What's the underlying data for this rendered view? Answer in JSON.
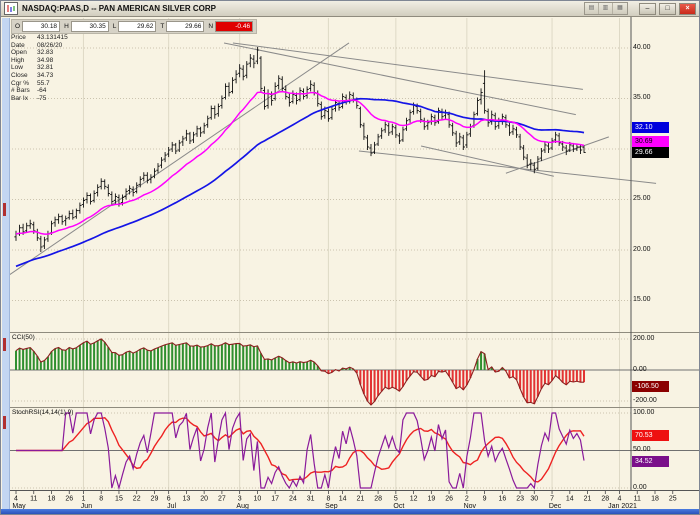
{
  "window": {
    "title": "NASDAQ:PAAS,D -- PAN AMERICAN SILVER CORP",
    "mini_toolbar": [
      "▤",
      "▥",
      "▦"
    ],
    "controls": {
      "minimize": "–",
      "restore": "□",
      "close": "×"
    }
  },
  "quote_strip": {
    "cells": [
      {
        "label": "O",
        "value": "30.18"
      },
      {
        "label": "H",
        "value": "30.35"
      },
      {
        "label": "L",
        "value": "29.62"
      },
      {
        "label": "T",
        "value": "29.66"
      },
      {
        "label": "N",
        "value": "-0.46",
        "negative": true
      }
    ]
  },
  "info_panel": {
    "rows": [
      {
        "label": "Price",
        "value": "43.131415"
      },
      {
        "label": "Date",
        "value": "08/26/20"
      },
      {
        "label": "Open",
        "value": "32.83"
      },
      {
        "label": "High",
        "value": "34.98"
      },
      {
        "label": "Low",
        "value": "32.81"
      },
      {
        "label": "Close",
        "value": "34.73"
      },
      {
        "label": "Cgr %",
        "value": "55.7"
      },
      {
        "label": "# Bars",
        "value": "-64"
      },
      {
        "label": "Bar Ix",
        "value": "-75"
      }
    ]
  },
  "colors": {
    "chart_bg": "#f8f3e3",
    "bar": "#111111",
    "sma": "#1414e6",
    "ema": "#ff00ff",
    "trendline": "#8a8a8a",
    "grid_dotted": "#bcb49e",
    "grid_month": "#ded9c6",
    "frame": "#8f8b7e",
    "axis": "#555555",
    "cci_pos": "#2f8f2f",
    "cci_neg": "#e23333",
    "cci_outline": "#8b1f1f",
    "stoch_k": "#8a1a9b",
    "stoch_d": "#ee2222",
    "tag_sma_bg": "#0000dd",
    "tag_ema_bg": "#ff00ff",
    "tag_last_bg": "#000000",
    "tag_cci_bg": "#8b0000",
    "tag_k_bg": "#7a0f8a",
    "tag_d_bg": "#ee1111",
    "quote_neg_bg": "#e00000"
  },
  "chart_data": {
    "type": "multi-panel-financial",
    "symbol": "NASDAQ:PAAS",
    "period": "D",
    "company": "PAN AMERICAN SILVER CORP",
    "x_axis": {
      "ticks": [
        {
          "d": "4",
          "m": "May",
          "i": 0
        },
        {
          "d": "11",
          "i": 5
        },
        {
          "d": "18",
          "i": 10
        },
        {
          "d": "26",
          "i": 15
        },
        {
          "d": "1",
          "m": "Jun",
          "i": 19
        },
        {
          "d": "8",
          "i": 24
        },
        {
          "d": "15",
          "i": 29
        },
        {
          "d": "22",
          "i": 34
        },
        {
          "d": "29",
          "i": 39
        },
        {
          "d": "6",
          "m": "Jul",
          "i": 43
        },
        {
          "d": "13",
          "i": 48
        },
        {
          "d": "20",
          "i": 53
        },
        {
          "d": "27",
          "i": 58
        },
        {
          "d": "3",
          "m": "Aug",
          "i": 63
        },
        {
          "d": "10",
          "i": 68
        },
        {
          "d": "17",
          "i": 73
        },
        {
          "d": "24",
          "i": 78
        },
        {
          "d": "31",
          "i": 83
        },
        {
          "d": "8",
          "m": "Sep",
          "i": 88
        },
        {
          "d": "14",
          "i": 92
        },
        {
          "d": "21",
          "i": 97
        },
        {
          "d": "28",
          "i": 102
        },
        {
          "d": "5",
          "m": "Oct",
          "i": 107
        },
        {
          "d": "12",
          "i": 112
        },
        {
          "d": "19",
          "i": 117
        },
        {
          "d": "26",
          "i": 122
        },
        {
          "d": "2",
          "m": "Nov",
          "i": 127
        },
        {
          "d": "9",
          "i": 132
        },
        {
          "d": "16",
          "i": 137
        },
        {
          "d": "23",
          "i": 142
        },
        {
          "d": "30",
          "i": 146
        },
        {
          "d": "7",
          "m": "Dec",
          "i": 151
        },
        {
          "d": "14",
          "i": 156
        },
        {
          "d": "21",
          "i": 161
        },
        {
          "d": "28",
          "i": 166
        },
        {
          "d": "4",
          "m": "Jan 2021",
          "i": 170
        },
        {
          "d": "11",
          "i": 175
        },
        {
          "d": "18",
          "i": 180
        },
        {
          "d": "25",
          "i": 185
        }
      ]
    },
    "price_panel": {
      "type": "ohlc-bar",
      "yticks": [
        40,
        35,
        30,
        25,
        20,
        15
      ],
      "ylim": [
        12,
        43.5
      ],
      "ma_prehistory_ramp": [
        15.0,
        21.5
      ],
      "overlays": [
        {
          "name": "SMA(50)",
          "color": "#1414e6",
          "last_label": "32.10"
        },
        {
          "name": "EMA(20)",
          "color": "#ff00ff",
          "last_label": "30.69"
        }
      ],
      "last_trade_label": "29.66",
      "trendlines": [
        [
          -3.7,
          17.1,
          93.8,
          40.5
        ],
        [
          61.1,
          40.5,
          159.7,
          35.9
        ],
        [
          58.6,
          40.5,
          157.7,
          33.4
        ],
        [
          96.6,
          29.8,
          180.3,
          26.6
        ],
        [
          114.1,
          30.3,
          151.5,
          27.3
        ],
        [
          138,
          27.6,
          167,
          31.2
        ]
      ],
      "bars": [
        [
          21.3,
          21.9,
          20.9,
          21.6
        ],
        [
          21.6,
          22.5,
          21.4,
          22.2
        ],
        [
          22.2,
          22.6,
          21.5,
          21.8
        ],
        [
          21.9,
          22.7,
          21.7,
          22.4
        ],
        [
          22.4,
          23.0,
          22.1,
          22.6
        ],
        [
          22.5,
          22.8,
          21.6,
          21.9
        ],
        [
          21.8,
          22.1,
          20.9,
          21.2
        ],
        [
          21.1,
          21.4,
          19.8,
          20.3
        ],
        [
          20.4,
          21.3,
          20.1,
          21.0
        ],
        [
          21.1,
          21.9,
          20.8,
          21.6
        ],
        [
          21.7,
          22.9,
          21.5,
          22.6
        ],
        [
          22.7,
          23.3,
          22.3,
          23.0
        ],
        [
          23.0,
          23.6,
          22.6,
          23.3
        ],
        [
          23.3,
          23.5,
          22.5,
          22.8
        ],
        [
          22.9,
          23.4,
          22.4,
          23.1
        ],
        [
          23.2,
          23.9,
          23.0,
          23.6
        ],
        [
          23.6,
          24.0,
          23.0,
          23.2
        ],
        [
          23.3,
          24.1,
          23.1,
          23.9
        ],
        [
          23.9,
          24.7,
          23.6,
          24.4
        ],
        [
          24.5,
          25.2,
          24.2,
          24.9
        ],
        [
          25.0,
          25.7,
          24.6,
          25.4
        ],
        [
          25.4,
          25.6,
          24.5,
          24.8
        ],
        [
          24.9,
          25.9,
          24.7,
          25.6
        ],
        [
          25.7,
          26.5,
          25.3,
          26.2
        ],
        [
          26.3,
          27.1,
          26.0,
          26.8
        ],
        [
          26.8,
          27.0,
          26.0,
          26.3
        ],
        [
          26.2,
          26.5,
          25.3,
          25.6
        ],
        [
          25.5,
          25.8,
          24.5,
          24.8
        ],
        [
          24.9,
          25.6,
          24.5,
          25.3
        ],
        [
          25.2,
          25.5,
          24.3,
          24.6
        ],
        [
          24.7,
          25.5,
          24.4,
          25.2
        ],
        [
          25.3,
          26.1,
          25.0,
          25.8
        ],
        [
          25.9,
          26.4,
          25.5,
          26.1
        ],
        [
          26.0,
          26.3,
          25.3,
          25.7
        ],
        [
          25.8,
          26.7,
          25.6,
          26.4
        ],
        [
          26.5,
          27.3,
          26.2,
          27.0
        ],
        [
          27.1,
          27.7,
          26.8,
          27.4
        ],
        [
          27.4,
          27.7,
          26.6,
          26.9
        ],
        [
          27.0,
          27.5,
          26.6,
          27.2
        ],
        [
          27.3,
          28.1,
          27.1,
          27.8
        ],
        [
          27.9,
          28.6,
          27.6,
          28.3
        ],
        [
          28.4,
          29.2,
          28.1,
          28.9
        ],
        [
          29.0,
          29.7,
          28.7,
          29.4
        ],
        [
          29.5,
          30.2,
          29.2,
          29.9
        ],
        [
          30.0,
          30.7,
          29.7,
          30.4
        ],
        [
          30.4,
          30.6,
          29.5,
          29.8
        ],
        [
          29.9,
          30.9,
          29.7,
          30.6
        ],
        [
          30.7,
          31.3,
          30.3,
          31.0
        ],
        [
          31.1,
          31.9,
          30.8,
          31.5
        ],
        [
          31.5,
          31.7,
          30.5,
          30.8
        ],
        [
          30.9,
          31.7,
          30.6,
          31.4
        ],
        [
          31.5,
          32.3,
          31.2,
          32.0
        ],
        [
          32.0,
          32.2,
          31.2,
          31.6
        ],
        [
          31.7,
          32.6,
          31.5,
          32.3
        ],
        [
          32.4,
          33.3,
          32.1,
          33.0
        ],
        [
          33.1,
          34.3,
          32.9,
          34.0
        ],
        [
          34.0,
          34.3,
          33.0,
          33.4
        ],
        [
          33.5,
          34.5,
          33.2,
          34.2
        ],
        [
          34.3,
          35.3,
          34.0,
          35.0
        ],
        [
          35.1,
          36.5,
          34.9,
          36.2
        ],
        [
          36.2,
          36.6,
          35.2,
          35.6
        ],
        [
          35.7,
          37.1,
          35.5,
          36.8
        ],
        [
          36.9,
          37.8,
          36.5,
          37.4
        ],
        [
          37.5,
          38.4,
          37.1,
          38.0
        ],
        [
          37.9,
          38.3,
          36.8,
          37.2
        ],
        [
          37.3,
          38.7,
          37.0,
          38.4
        ],
        [
          38.5,
          39.4,
          38.1,
          39.0
        ],
        [
          38.9,
          39.3,
          38.0,
          38.5
        ],
        [
          38.7,
          40.1,
          38.4,
          39.8
        ],
        [
          39.0,
          39.2,
          35.6,
          36.0
        ],
        [
          35.8,
          36.2,
          33.9,
          34.2
        ],
        [
          34.3,
          35.9,
          34.0,
          35.5
        ],
        [
          35.4,
          35.7,
          34.3,
          34.8
        ],
        [
          35.0,
          36.6,
          34.8,
          36.2
        ],
        [
          36.3,
          37.3,
          35.9,
          37.0
        ],
        [
          36.9,
          37.2,
          35.7,
          36.0
        ],
        [
          35.9,
          36.3,
          34.9,
          35.2
        ],
        [
          35.1,
          35.5,
          34.2,
          34.6
        ],
        [
          34.7,
          35.8,
          34.5,
          35.4
        ],
        [
          35.3,
          35.6,
          34.4,
          34.8
        ],
        [
          34.9,
          36.1,
          34.7,
          35.8
        ],
        [
          35.7,
          36.0,
          34.9,
          35.2
        ],
        [
          35.3,
          36.2,
          35.0,
          35.9
        ],
        [
          36.0,
          36.8,
          35.7,
          36.4
        ],
        [
          36.3,
          36.6,
          35.3,
          35.6
        ],
        [
          35.5,
          35.8,
          34.2,
          34.5
        ],
        [
          34.4,
          34.7,
          32.9,
          33.2
        ],
        [
          33.3,
          34.2,
          33.0,
          33.8
        ],
        [
          33.7,
          34.0,
          32.7,
          33.0
        ],
        [
          33.1,
          34.2,
          32.9,
          33.9
        ],
        [
          34.0,
          34.9,
          33.7,
          34.6
        ],
        [
          34.5,
          34.8,
          33.8,
          34.1
        ],
        [
          34.2,
          35.5,
          34.0,
          35.2
        ],
        [
          35.1,
          35.4,
          34.4,
          34.7
        ],
        [
          34.8,
          35.7,
          34.5,
          35.4
        ],
        [
          35.3,
          35.6,
          34.6,
          34.9
        ],
        [
          34.8,
          35.1,
          34.0,
          34.3
        ],
        [
          34.0,
          34.2,
          32.1,
          32.4
        ],
        [
          32.3,
          32.6,
          30.9,
          31.2
        ],
        [
          31.1,
          31.4,
          29.9,
          30.2
        ],
        [
          30.1,
          30.5,
          29.3,
          29.6
        ],
        [
          29.7,
          30.7,
          29.5,
          30.4
        ],
        [
          30.5,
          31.5,
          30.3,
          31.2
        ],
        [
          31.3,
          32.1,
          31.0,
          31.8
        ],
        [
          31.9,
          32.7,
          31.6,
          32.4
        ],
        [
          32.3,
          32.6,
          31.3,
          31.6
        ],
        [
          31.7,
          32.5,
          31.4,
          32.2
        ],
        [
          32.1,
          32.4,
          31.1,
          31.4
        ],
        [
          31.3,
          31.6,
          30.5,
          30.8
        ],
        [
          30.9,
          32.2,
          30.7,
          31.9
        ],
        [
          32.0,
          33.1,
          31.8,
          32.8
        ],
        [
          32.9,
          33.9,
          32.6,
          33.6
        ],
        [
          33.7,
          34.6,
          33.4,
          34.3
        ],
        [
          34.2,
          34.5,
          33.5,
          33.8
        ],
        [
          33.7,
          34.0,
          32.6,
          32.9
        ],
        [
          32.8,
          33.1,
          31.9,
          32.2
        ],
        [
          32.3,
          32.9,
          31.9,
          32.6
        ],
        [
          32.7,
          33.5,
          32.4,
          33.2
        ],
        [
          33.1,
          33.4,
          32.3,
          32.6
        ],
        [
          32.7,
          34.1,
          32.5,
          33.8
        ],
        [
          33.7,
          34.0,
          32.9,
          33.2
        ],
        [
          33.3,
          33.9,
          32.9,
          33.6
        ],
        [
          33.4,
          33.7,
          32.1,
          32.4
        ],
        [
          32.3,
          32.6,
          31.3,
          31.6
        ],
        [
          31.5,
          31.8,
          30.2,
          30.6
        ],
        [
          30.7,
          31.6,
          30.4,
          31.2
        ],
        [
          31.1,
          31.4,
          29.9,
          30.2
        ],
        [
          30.4,
          31.7,
          30.1,
          31.4
        ],
        [
          31.5,
          32.5,
          31.2,
          32.2
        ],
        [
          32.3,
          33.7,
          32.1,
          33.4
        ],
        [
          33.5,
          35.1,
          33.3,
          34.8
        ],
        [
          34.9,
          36.0,
          34.4,
          35.6
        ],
        [
          36.5,
          37.8,
          33.5,
          33.8
        ],
        [
          33.7,
          34.0,
          32.2,
          32.6
        ],
        [
          32.7,
          33.8,
          32.4,
          33.4
        ],
        [
          33.3,
          33.6,
          31.9,
          32.2
        ],
        [
          32.3,
          33.1,
          32.0,
          32.8
        ],
        [
          32.9,
          33.5,
          32.4,
          33.2
        ],
        [
          33.1,
          33.4,
          32.1,
          32.4
        ],
        [
          32.3,
          32.6,
          31.3,
          31.6
        ],
        [
          31.7,
          32.4,
          31.4,
          32.0
        ],
        [
          31.9,
          32.2,
          31.1,
          31.4
        ],
        [
          31.2,
          31.5,
          29.9,
          30.2
        ],
        [
          30.1,
          30.4,
          28.9,
          29.2
        ],
        [
          29.1,
          29.5,
          28.1,
          28.4
        ],
        [
          28.5,
          29.0,
          27.9,
          28.6
        ],
        [
          28.4,
          28.7,
          27.6,
          28.0
        ],
        [
          28.1,
          29.3,
          27.9,
          29.0
        ],
        [
          29.1,
          30.1,
          28.8,
          29.8
        ],
        [
          29.9,
          30.7,
          29.6,
          30.4
        ],
        [
          30.3,
          30.6,
          29.6,
          30.0
        ],
        [
          30.1,
          31.1,
          29.9,
          30.8
        ],
        [
          30.9,
          31.7,
          30.6,
          31.4
        ],
        [
          31.3,
          31.6,
          30.3,
          30.6
        ],
        [
          30.5,
          30.8,
          29.8,
          30.2
        ],
        [
          30.1,
          30.4,
          29.4,
          29.8
        ],
        [
          29.9,
          30.7,
          29.7,
          30.4
        ],
        [
          30.3,
          30.6,
          29.7,
          30.0
        ],
        [
          30.0,
          30.5,
          29.8,
          30.2
        ],
        [
          30.2,
          30.5,
          29.5,
          29.9
        ],
        [
          30.18,
          30.35,
          29.62,
          29.66
        ]
      ]
    },
    "cci_panel": {
      "type": "histogram",
      "label": "CCI(50)",
      "period": 50,
      "yticks": [
        200,
        0,
        -200
      ],
      "last_label": "-106.50"
    },
    "stochrsi_panel": {
      "type": "line",
      "label": "StochRSI(14,14(1),9)",
      "yticks": [
        100,
        50,
        0
      ],
      "k_last_label": "34.52",
      "d_last_label": "70.53"
    }
  }
}
